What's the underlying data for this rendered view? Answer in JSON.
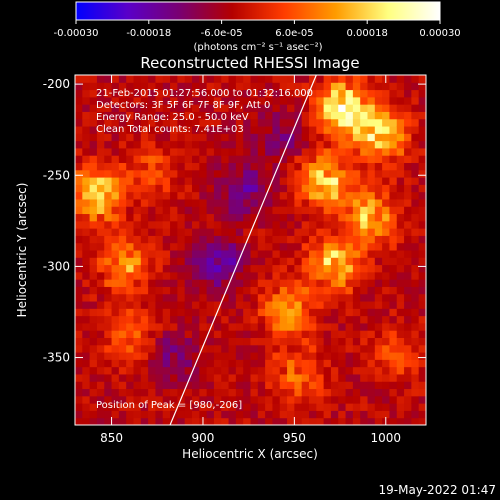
{
  "chart_data": {
    "type": "heatmap",
    "title": "Reconstructed RHESSI Image",
    "xlabel": "Heliocentric X (arcsec)",
    "ylabel": "Heliocentric Y (arcsec)",
    "xlim": [
      830,
      1022
    ],
    "ylim": [
      -387,
      -195
    ],
    "x_ticks": [
      850,
      900,
      950,
      1000
    ],
    "y_ticks": [
      -200,
      -250,
      -300,
      -350
    ],
    "colorbar": {
      "ticks": [
        "-0.00030",
        "-0.00018",
        "-6.0e-05",
        "6.0e-05",
        "0.00018",
        "0.00030"
      ],
      "range": [
        -0.0003,
        0.0003
      ],
      "units": "(photons cm⁻² s⁻¹ asec⁻²)",
      "colors": [
        "#0000ff",
        "#5a00c8",
        "#7a0070",
        "#b40000",
        "#ff3c00",
        "#ff9c00",
        "#ffff80",
        "#ffffff"
      ]
    },
    "info": [
      "21-Feb-2015 01:27:56.000 to 01:32:16.000",
      "Detectors: 3F 5F 6F 7F 8F 9F, Att 0",
      "Energy Range: 25.0 - 50.0 keV",
      "Clean    Total counts: 7.41E+03"
    ],
    "peak_label": "Position of Peak = [980,-206]",
    "limb_line": [
      [
        882,
        -387
      ],
      [
        962,
        -195
      ]
    ],
    "hot_regions": [
      {
        "x": 975,
        "y": -215,
        "value": 0.00029
      },
      {
        "x": 995,
        "y": -230,
        "value": 0.00025
      },
      {
        "x": 965,
        "y": -255,
        "value": 0.00022
      },
      {
        "x": 990,
        "y": -275,
        "value": 0.0002
      },
      {
        "x": 970,
        "y": -300,
        "value": 0.00021
      },
      {
        "x": 945,
        "y": -325,
        "value": 0.00018
      },
      {
        "x": 840,
        "y": -262,
        "value": 0.00025
      },
      {
        "x": 855,
        "y": -300,
        "value": 0.00016
      },
      {
        "x": 860,
        "y": -340,
        "value": 0.00014
      },
      {
        "x": 950,
        "y": -360,
        "value": 0.00012
      },
      {
        "x": 870,
        "y": -250,
        "value": 0.0001
      },
      {
        "x": 1005,
        "y": -350,
        "value": 0.0001
      }
    ],
    "cold_regions": [
      {
        "x": 920,
        "y": -260,
        "value": -0.00012
      },
      {
        "x": 905,
        "y": -300,
        "value": -0.00014
      },
      {
        "x": 880,
        "y": -350,
        "value": -0.0001
      },
      {
        "x": 940,
        "y": -230,
        "value": -8e-05
      }
    ]
  },
  "timestamp": "19-May-2022 01:47"
}
